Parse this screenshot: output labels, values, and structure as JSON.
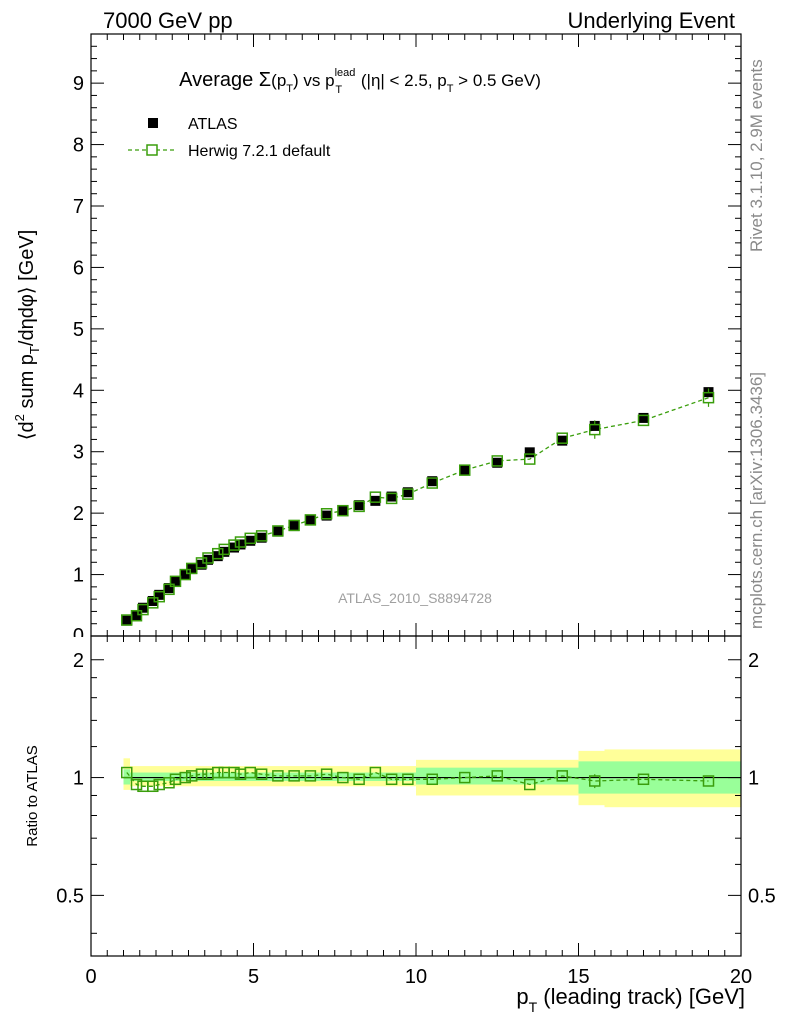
{
  "header": {
    "left": "7000 GeV pp",
    "right": "Underlying Event"
  },
  "side_labels": {
    "rivet": "Rivet 3.1.10,  2.9M events",
    "source": "mcplots.cern.ch [arXiv:1306.3436]"
  },
  "chart_data": [
    {
      "type": "scatter",
      "title_parts": {
        "prefix": "Average ",
        "sigma": "Σ",
        "paren_open": "(p",
        "T": "T",
        "paren_close": ")",
        "vs": " vs p",
        "lead": "lead",
        "tail1": " (|η| < 2.5, p",
        "tail2": " > 0.5 GeV)"
      },
      "ylabel_parts": {
        "a": "⟨d",
        "sup": "2",
        "b": " sum p",
        "sub": "T",
        "c": "/dηdφ⟩ [GeV]"
      },
      "watermark": "ATLAS_2010_S8894728",
      "xlim": [
        0,
        20
      ],
      "ylim": [
        0,
        9.8
      ],
      "yticks": [
        "1",
        "2",
        "3",
        "4",
        "5",
        "6",
        "7",
        "8",
        "9"
      ],
      "series": [
        {
          "name": "ATLAS",
          "style": "filled-square",
          "color": "#000000",
          "x": [
            1.1,
            1.4,
            1.6,
            1.9,
            2.1,
            2.4,
            2.6,
            2.9,
            3.1,
            3.4,
            3.6,
            3.9,
            4.1,
            4.4,
            4.6,
            4.9,
            5.25,
            5.75,
            6.25,
            6.75,
            7.25,
            7.75,
            8.25,
            8.75,
            9.25,
            9.75,
            10.5,
            11.5,
            12.5,
            13.5,
            14.5,
            15.5,
            17.0,
            19.0
          ],
          "y": [
            0.25,
            0.34,
            0.46,
            0.57,
            0.67,
            0.78,
            0.89,
            1.0,
            1.09,
            1.16,
            1.24,
            1.3,
            1.37,
            1.44,
            1.49,
            1.55,
            1.6,
            1.7,
            1.79,
            1.88,
            1.96,
            2.05,
            2.13,
            2.2,
            2.27,
            2.34,
            2.52,
            2.7,
            2.82,
            2.99,
            3.18,
            3.42,
            3.55,
            3.97
          ]
        },
        {
          "name": "Herwig 7.2.1 default",
          "style": "open-square-dashed",
          "color": "#3a9e0c",
          "x": [
            1.1,
            1.4,
            1.6,
            1.9,
            2.1,
            2.4,
            2.6,
            2.9,
            3.1,
            3.4,
            3.6,
            3.9,
            4.1,
            4.4,
            4.6,
            4.9,
            5.25,
            5.75,
            6.25,
            6.75,
            7.25,
            7.75,
            8.25,
            8.75,
            9.25,
            9.75,
            10.5,
            11.5,
            12.5,
            13.5,
            14.5,
            15.5,
            17.0,
            19.0
          ],
          "y": [
            0.26,
            0.33,
            0.43,
            0.54,
            0.64,
            0.76,
            0.89,
            1.0,
            1.1,
            1.19,
            1.27,
            1.34,
            1.41,
            1.48,
            1.53,
            1.59,
            1.63,
            1.71,
            1.8,
            1.89,
            1.99,
            2.04,
            2.11,
            2.26,
            2.24,
            2.31,
            2.49,
            2.7,
            2.85,
            2.88,
            3.22,
            3.36,
            3.51,
            3.88
          ],
          "yerr": [
            0.02,
            0.02,
            0.02,
            0.02,
            0.02,
            0.02,
            0.02,
            0.02,
            0.02,
            0.02,
            0.02,
            0.02,
            0.02,
            0.02,
            0.02,
            0.02,
            0.03,
            0.03,
            0.03,
            0.03,
            0.03,
            0.03,
            0.04,
            0.04,
            0.04,
            0.05,
            0.05,
            0.06,
            0.06,
            0.07,
            0.08,
            0.15,
            0.09,
            0.15
          ]
        }
      ]
    },
    {
      "type": "scatter",
      "ylabel": "Ratio to ATLAS",
      "xlabel_parts": {
        "p": "p",
        "T": "T",
        "rest": " (leading track) [GeV]"
      },
      "xlim": [
        0,
        20
      ],
      "ylim": [
        0.35,
        2.3
      ],
      "xticks": [
        "0",
        "5",
        "10",
        "15",
        "20"
      ],
      "yticks": [
        {
          "value": 0.5,
          "label": "0.5"
        },
        {
          "value": 1,
          "label": "1"
        },
        {
          "value": 2,
          "label": "2"
        }
      ],
      "bands": [
        {
          "x0": 1.0,
          "x1": 1.2,
          "y_lo": 0.93,
          "y_hi": 1.12,
          "in_lo": 0.96,
          "in_hi": 1.05
        },
        {
          "x0": 1.2,
          "x1": 10.0,
          "y_lo": 0.95,
          "y_hi": 1.07,
          "in_lo": 0.98,
          "in_hi": 1.03
        },
        {
          "x0": 10.0,
          "x1": 15.0,
          "y_lo": 0.9,
          "y_hi": 1.11,
          "in_lo": 0.96,
          "in_hi": 1.06
        },
        {
          "x0": 15.0,
          "x1": 15.8,
          "y_lo": 0.85,
          "y_hi": 1.17,
          "in_lo": 0.91,
          "in_hi": 1.1
        },
        {
          "x0": 15.8,
          "x1": 20.0,
          "y_lo": 0.84,
          "y_hi": 1.18,
          "in_lo": 0.91,
          "in_hi": 1.1
        }
      ],
      "band_colors": {
        "outer": "#ffff99",
        "inner": "#99ff99"
      },
      "series": [
        {
          "name": "Herwig 7.2.1 default",
          "style": "open-square-dashed",
          "color": "#3a9e0c",
          "x": [
            1.1,
            1.4,
            1.6,
            1.9,
            2.1,
            2.4,
            2.6,
            2.9,
            3.1,
            3.4,
            3.6,
            3.9,
            4.1,
            4.4,
            4.6,
            4.9,
            5.25,
            5.75,
            6.25,
            6.75,
            7.25,
            7.75,
            8.25,
            8.75,
            9.25,
            9.75,
            10.5,
            11.5,
            12.5,
            13.5,
            14.5,
            15.5,
            17.0,
            19.0
          ],
          "y": [
            1.03,
            0.96,
            0.95,
            0.95,
            0.96,
            0.97,
            0.99,
            1.0,
            1.01,
            1.02,
            1.02,
            1.03,
            1.03,
            1.03,
            1.02,
            1.03,
            1.02,
            1.01,
            1.01,
            1.01,
            1.02,
            1.0,
            0.99,
            1.03,
            0.99,
            0.99,
            0.99,
            1.0,
            1.01,
            0.96,
            1.01,
            0.98,
            0.99,
            0.98
          ],
          "yerr": [
            0.01,
            0.01,
            0.01,
            0.01,
            0.01,
            0.01,
            0.01,
            0.01,
            0.01,
            0.01,
            0.01,
            0.01,
            0.01,
            0.01,
            0.01,
            0.01,
            0.01,
            0.01,
            0.01,
            0.01,
            0.01,
            0.01,
            0.01,
            0.02,
            0.01,
            0.02,
            0.02,
            0.02,
            0.02,
            0.02,
            0.02,
            0.04,
            0.02,
            0.03
          ]
        }
      ]
    }
  ]
}
